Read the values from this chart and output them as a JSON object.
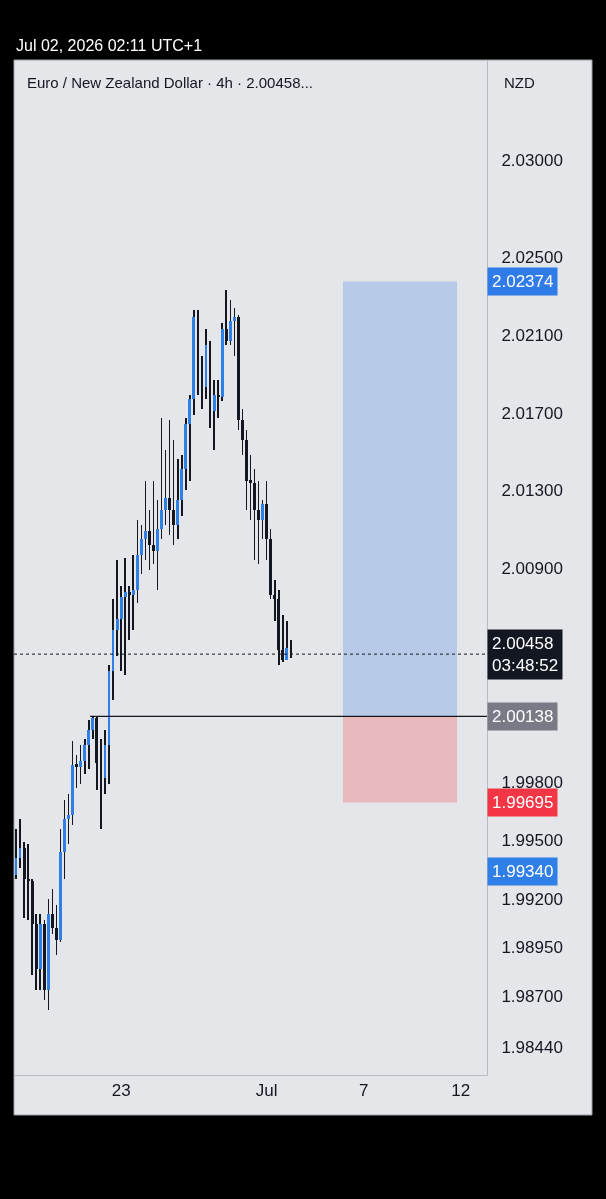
{
  "chart_data": {
    "type": "candlestick",
    "title": "Euro / New Zealand Dollar · 4h · 2.00458...",
    "subtitle": "Jul 02, 2026 02:11 UTC+1",
    "ylabel": "NZD",
    "colors": [
      "#2f7fe6",
      "#2f7fe6",
      "#131722",
      "#131722",
      "#131722",
      "#131722",
      "#2f7fe6",
      "#131722",
      "#2f7fe6",
      "#131722",
      "#131722",
      "#2f7fe6",
      "#2f7fe6",
      "#2f7fe6",
      "#2f7fe6",
      "#131722",
      "#2f7fe6",
      "#2f7fe6",
      "#2f7fe6",
      "#2f7fe6",
      "#131722",
      "#131722",
      "#2f7fe6",
      "#2f7fe6",
      "#2f7fe6",
      "#2f7fe6",
      "#2f7fe6",
      "#2f7fe6",
      "#131722",
      "#2f7fe6",
      "#2f7fe6",
      "#2f7fe6",
      "#2f7fe6",
      "#131722",
      "#131722",
      "#2f7fe6",
      "#2f7fe6",
      "#2f7fe6",
      "#131722",
      "#131722",
      "#2f7fe6",
      "#2f7fe6",
      "#2f7fe6",
      "#2f7fe6",
      "#2f7fe6",
      "#131722",
      "#131722",
      "#2f7fe6",
      "#131722",
      "#2f7fe6",
      "#131722",
      "#2f7fe6",
      "#131722",
      "#2f7fe6",
      "#2f7fe6",
      "#131722",
      "#131722",
      "#131722",
      "#131722",
      "#131722",
      "#131722",
      "#2f7fe6",
      "#131722",
      "#131722",
      "#131722",
      "#131722",
      "#131722",
      "#2f7fe6",
      "#131722",
      null,
      null,
      null,
      null,
      null,
      null,
      null,
      null,
      null,
      null,
      null,
      null,
      null,
      null,
      null,
      null,
      null,
      null,
      null,
      null,
      null,
      null,
      null,
      null,
      null,
      null,
      null,
      null,
      null,
      null,
      null,
      null,
      null,
      null,
      null,
      null,
      null,
      null,
      null,
      null,
      null,
      null,
      null,
      null,
      null,
      null,
      null,
      null
    ],
    "categories": [
      null,
      null,
      null,
      null,
      null,
      null,
      null,
      null,
      null,
      null,
      null,
      null,
      null,
      null,
      null,
      null,
      null,
      null,
      null,
      null,
      null,
      null,
      null,
      null,
      null,
      null,
      "23",
      null,
      null,
      null,
      null,
      null,
      null,
      null,
      null,
      null,
      null,
      null,
      null,
      null,
      null,
      null,
      null,
      null,
      null,
      null,
      null,
      null,
      null,
      null,
      null,
      null,
      null,
      null,
      null,
      null,
      null,
      null,
      null,
      null,
      null,
      null,
      "Jul",
      null,
      null,
      null,
      null,
      null,
      null,
      null,
      null,
      null,
      null,
      null,
      null,
      null,
      null,
      null,
      null,
      null,
      null,
      null,
      null,
      null,
      null,
      null,
      "7",
      null,
      null,
      null,
      null,
      null,
      null,
      null,
      null,
      null,
      null,
      null,
      null,
      null,
      null,
      null,
      null,
      null,
      null,
      null,
      null,
      null,
      null,
      null,
      "12",
      null,
      null,
      null,
      null,
      null,
      null
    ],
    "ohlc": [
      [
        1.9932,
        1.9956,
        1.993,
        1.9941
      ],
      [
        1.9941,
        1.9961,
        1.9936,
        1.9946
      ],
      [
        1.9946,
        1.9949,
        1.991,
        1.993
      ],
      [
        1.993,
        1.9948,
        1.9909,
        1.9929
      ],
      [
        1.9929,
        1.993,
        1.9881,
        1.9907
      ],
      [
        1.9907,
        1.9912,
        1.9873,
        1.9884
      ],
      [
        1.9884,
        1.9912,
        1.9873,
        1.9907
      ],
      [
        1.9907,
        1.9909,
        1.9868,
        1.9873
      ],
      [
        1.9873,
        1.992,
        1.9863,
        1.9912
      ],
      [
        1.9912,
        1.9925,
        1.9902,
        1.9905
      ],
      [
        1.9905,
        1.9917,
        1.9891,
        1.9899
      ],
      [
        1.9899,
        1.9956,
        1.9898,
        1.9944
      ],
      [
        1.9944,
        1.9971,
        1.993,
        1.9961
      ],
      [
        1.9961,
        1.9974,
        1.9948,
        1.9963
      ],
      [
        1.9963,
        2.0001,
        1.9958,
        1.9989
      ],
      [
        1.9989,
        1.9994,
        1.9977,
        1.9988
      ],
      [
        1.9988,
        1.9999,
        1.9979,
        1.9991
      ],
      [
        1.9991,
        2.0002,
        1.9984,
        1.9999
      ],
      [
        1.9999,
        2.0012,
        1.9987,
        2.0007
      ],
      [
        2.0007,
        2.0014,
        2.0002,
        2.0013
      ],
      [
        2.0013,
        2.0014,
        1.9976,
        1.999
      ],
      [
        1.999,
        2.0002,
        1.9956,
        1.9982
      ],
      [
        1.9982,
        2.0007,
        1.9974,
        1.9999
      ],
      [
        1.9999,
        2.004,
        1.9979,
        2.0037
      ],
      [
        2.0037,
        2.0074,
        2.0022,
        2.0058
      ],
      [
        2.0058,
        2.0094,
        2.0045,
        2.0064
      ],
      [
        2.0064,
        2.0081,
        2.0037,
        2.0075
      ],
      [
        2.0075,
        2.0095,
        2.0035,
        2.0078
      ],
      [
        2.0078,
        2.0081,
        2.0053,
        2.0076
      ],
      [
        2.0076,
        2.0097,
        2.0058,
        2.0079
      ],
      [
        2.0079,
        2.0115,
        2.0072,
        2.0097
      ],
      [
        2.0097,
        2.0112,
        2.0087,
        2.0105
      ],
      [
        2.0105,
        2.0135,
        2.0094,
        2.0109
      ],
      [
        2.0109,
        2.012,
        2.0089,
        2.0102
      ],
      [
        2.0102,
        2.0135,
        2.0092,
        2.0099
      ],
      [
        2.0099,
        2.0125,
        2.0079,
        2.011
      ],
      [
        2.011,
        2.0167,
        2.0105,
        2.012
      ],
      [
        2.012,
        2.0151,
        2.0112,
        2.0126
      ],
      [
        2.0126,
        2.0166,
        2.0107,
        2.012
      ],
      [
        2.012,
        2.0156,
        2.0102,
        2.0112
      ],
      [
        2.0112,
        2.0146,
        2.0105,
        2.0125
      ],
      [
        2.0125,
        2.0148,
        2.0117,
        2.0141
      ],
      [
        2.0141,
        2.0167,
        2.013,
        2.0164
      ],
      [
        2.0164,
        2.0179,
        2.0135,
        2.0177
      ],
      [
        2.0177,
        2.0223,
        2.0169,
        2.0219
      ],
      [
        2.0219,
        2.0223,
        2.0179,
        2.0188
      ],
      [
        2.0188,
        2.0199,
        2.0172,
        2.0183
      ],
      [
        2.0183,
        2.0213,
        2.0177,
        2.0205
      ],
      [
        2.0205,
        2.0207,
        2.0162,
        2.0171
      ],
      [
        2.0171,
        2.0187,
        2.0151,
        2.0179
      ],
      [
        2.0179,
        2.0187,
        2.0167,
        2.0178
      ],
      [
        2.0178,
        2.0216,
        2.0176,
        2.0213
      ],
      [
        2.0213,
        2.0233,
        2.0205,
        2.0207
      ],
      [
        2.0207,
        2.0228,
        2.0205,
        2.0217
      ],
      [
        2.0217,
        2.0224,
        2.0199,
        2.0219
      ],
      [
        2.0219,
        2.022,
        2.0161,
        2.0166
      ],
      [
        2.0166,
        2.0172,
        2.0148,
        2.0156
      ],
      [
        2.0156,
        2.0161,
        2.012,
        2.0135
      ],
      [
        2.0135,
        2.0148,
        2.0115,
        2.0134
      ],
      [
        2.0134,
        2.0141,
        2.0094,
        2.012
      ],
      [
        2.012,
        2.0135,
        2.0092,
        2.0115
      ],
      [
        2.0115,
        2.0125,
        2.0105,
        2.0123
      ],
      [
        2.0123,
        2.0135,
        2.0094,
        2.0105
      ],
      [
        2.0105,
        2.011,
        2.0074,
        2.0076
      ],
      [
        2.0076,
        2.0084,
        2.0063,
        2.0074
      ],
      [
        2.0074,
        2.0079,
        2.004,
        2.0048
      ],
      [
        2.0048,
        2.0066,
        2.0042,
        2.0043
      ],
      [
        2.0043,
        2.0063,
        2.0043,
        2.0049
      ],
      [
        2.0049,
        2.0053,
        2.0044,
        2.00458
      ],
      null,
      null,
      null,
      null,
      null,
      null,
      null,
      null,
      null,
      null,
      null,
      null,
      null,
      null,
      null,
      null,
      null,
      null,
      null,
      null,
      null,
      null,
      null,
      null,
      null,
      null,
      null,
      null,
      null,
      null,
      null,
      null,
      null,
      null,
      null,
      null,
      null,
      null,
      null,
      null,
      null,
      null,
      null,
      null,
      null,
      null,
      null,
      null
    ],
    "ylim": [
      1.98294,
      2.03513
    ],
    "yticks": [
      {
        "value": 2.03,
        "label": "2.03000"
      },
      {
        "value": 2.025,
        "label": "2.02500"
      },
      {
        "value": 2.021,
        "label": "2.02100"
      },
      {
        "value": 2.017,
        "label": "2.01700"
      },
      {
        "value": 2.013,
        "label": "2.01300"
      },
      {
        "value": 2.009,
        "label": "2.00900"
      },
      {
        "value": 1.998,
        "label": "1.99800"
      },
      {
        "value": 1.995,
        "label": "1.99500"
      },
      {
        "value": 1.992,
        "label": "1.99200"
      },
      {
        "value": 1.9895,
        "label": "1.98950"
      },
      {
        "value": 1.987,
        "label": "1.98700"
      },
      {
        "value": 1.9844,
        "label": "1.98440"
      }
    ],
    "ref_lines": [
      {
        "axis": "y",
        "value": 2.00458,
        "label": "2.00458\n03:48:52",
        "color": "#131722",
        "line_style": "dotted"
      },
      {
        "axis": "y",
        "value": 2.00138,
        "label": "2.00138",
        "color": "#131722",
        "line_style": "solid"
      }
    ],
    "bands": [
      {
        "axis": "y",
        "from": 2.00138,
        "to": 2.02374,
        "label": "2.02374",
        "color": "#2f7be8"
      },
      {
        "axis": "y",
        "from": 2.00138,
        "to": 1.99695,
        "label": "1.99695",
        "color": "#f23645"
      }
    ],
    "annotations": [
      "1.99340"
    ],
    "grid": false
  }
}
